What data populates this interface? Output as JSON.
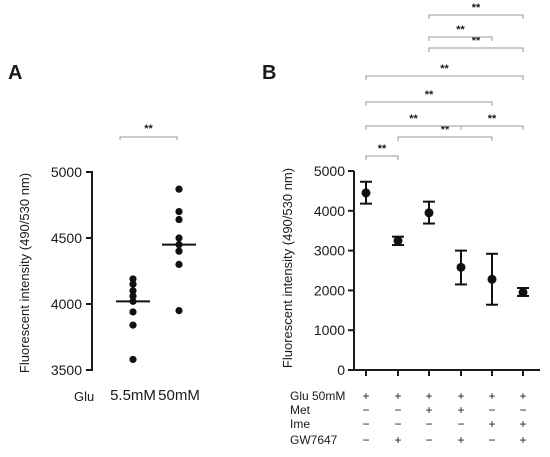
{
  "chart_data": [
    {
      "panel_label": "A",
      "type": "scatter",
      "ylabel": "Fluorescent intensity (490/530 nm)",
      "ylim": [
        3500,
        5000
      ],
      "yticks": [
        3500,
        4000,
        4500,
        5000
      ],
      "row_label": "Glu",
      "categories": [
        "5.5mM",
        "50mM"
      ],
      "points": [
        [
          4190,
          4150,
          4100,
          4060,
          4020,
          3940,
          3840,
          3580
        ],
        [
          4870,
          4700,
          4640,
          4500,
          4450,
          4400,
          4300,
          3950
        ]
      ],
      "medians": [
        4020,
        4450
      ],
      "significance": [
        {
          "from": 0,
          "to": 1,
          "label": "**"
        }
      ]
    },
    {
      "panel_label": "B",
      "type": "scatter",
      "ylabel": "Fluorescent intensity (490/530 nm)",
      "ylim": [
        0,
        5000
      ],
      "yticks": [
        0,
        1000,
        2000,
        3000,
        4000,
        5000
      ],
      "means": [
        4450,
        3250,
        3950,
        2580,
        2280,
        1950
      ],
      "error_low": [
        4180,
        3140,
        3680,
        2150,
        1640,
        1860
      ],
      "error_high": [
        4730,
        3350,
        4230,
        3000,
        2920,
        2060
      ],
      "conditions": [
        {
          "label": "Glu 50mM",
          "marks": [
            "+",
            "+",
            "+",
            "+",
            "+",
            "+"
          ]
        },
        {
          "label": "Met",
          "marks": [
            "−",
            "−",
            "+",
            "+",
            "−",
            "−"
          ]
        },
        {
          "label": "Ime",
          "marks": [
            "−",
            "−",
            "−",
            "−",
            "+",
            "+"
          ]
        },
        {
          "label": "GW7647",
          "marks": [
            "−",
            "+",
            "−",
            "+",
            "−",
            "+"
          ]
        }
      ],
      "significance": [
        {
          "from": 0,
          "to": 1,
          "label": "**"
        },
        {
          "from": 1,
          "to": 4,
          "label": "**"
        },
        {
          "from": 0,
          "to": 3,
          "label": "**"
        },
        {
          "from": 3,
          "to": 5,
          "label": "**"
        },
        {
          "from": 0,
          "to": 4,
          "label": "**"
        },
        {
          "from": 0,
          "to": 5,
          "label": "**"
        },
        {
          "from": 2,
          "to": 5,
          "label": "**"
        },
        {
          "from": 2,
          "to": 4,
          "label": "**"
        },
        {
          "from": 2,
          "to": 5,
          "label": "**"
        }
      ]
    }
  ]
}
